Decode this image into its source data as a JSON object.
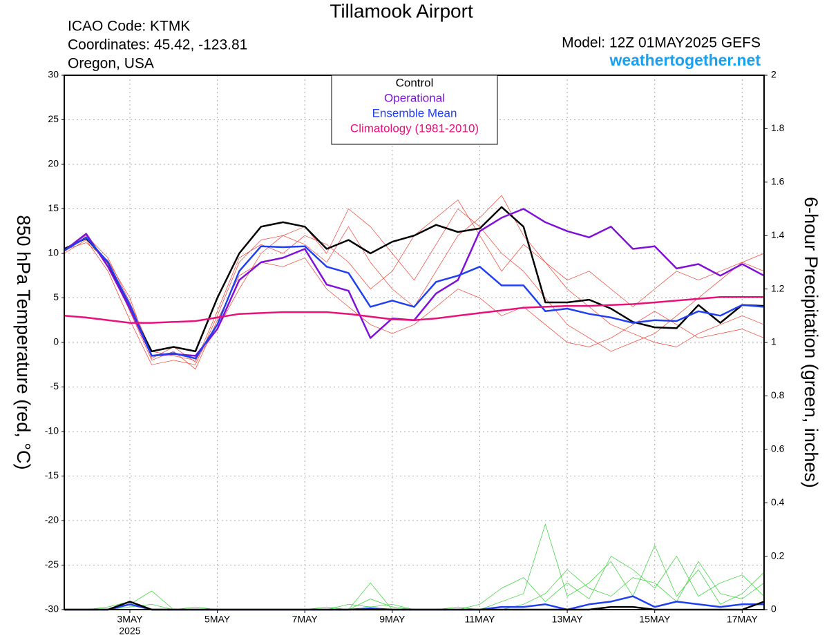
{
  "chart_data": {
    "type": "line",
    "title": "Tillamook Airport",
    "info_lines": [
      "ICAO Code: KTMK",
      "Coordinates: 45.42, -123.81",
      "Oregon, USA"
    ],
    "model": "Model: 12Z 01MAY2025 GEFS",
    "source": "weathertogether.net",
    "y_label": "850 hPa Temperature (red, °C)",
    "y2_label": "6-hour Precipitation (green, inches)",
    "categories": [
      null,
      null,
      null,
      "3MAY",
      null,
      null,
      null,
      "5MAY",
      null,
      null,
      null,
      "7MAY",
      null,
      null,
      null,
      "9MAY",
      null,
      null,
      null,
      "11MAY",
      null,
      null,
      null,
      "13MAY",
      null,
      null,
      null,
      "15MAY",
      null,
      null,
      null,
      "17MAY",
      null
    ],
    "x_sublabel": "2025",
    "ylim": [
      -30,
      30
    ],
    "yticks": [
      -30,
      -25,
      -20,
      -15,
      -10,
      -5,
      0,
      5,
      10,
      15,
      20,
      25,
      30
    ],
    "y2lim": [
      0,
      2
    ],
    "y2ticks": [
      0,
      0.2,
      0.4,
      0.6,
      0.8,
      1,
      1.2,
      1.4,
      1.6,
      1.8,
      2
    ],
    "grid": true,
    "series": [
      {
        "color": "#f04030",
        "width": 0.7,
        "values": [
          10,
          11.5,
          8,
          2.5,
          -2.5,
          -2,
          -2.5,
          3,
          9,
          11.5,
          12,
          11,
          9,
          13,
          9,
          6,
          4,
          8,
          12,
          14,
          16.5,
          12,
          9,
          6,
          4,
          2,
          1,
          0,
          -0.5,
          1,
          2,
          3,
          2
        ]
      },
      {
        "color": "#f04030",
        "width": 0.7,
        "values": [
          10.5,
          12,
          9.5,
          4.5,
          -1,
          -1.5,
          -2,
          1.5,
          6,
          10,
          12,
          13,
          10,
          15,
          13,
          10,
          7,
          11,
          15,
          13,
          10,
          8,
          5,
          2,
          0.5,
          -1,
          0,
          1,
          3,
          5,
          7,
          9,
          10
        ]
      },
      {
        "color": "#f04030",
        "width": 0.7,
        "values": [
          10.2,
          11.8,
          8.8,
          3.5,
          -2,
          -1,
          -3,
          2.5,
          7.5,
          9,
          8.5,
          9.5,
          6,
          4,
          2,
          1,
          2,
          4,
          6,
          5,
          3,
          4,
          2,
          0,
          -0.5,
          0.5,
          2,
          3.5,
          2,
          0.5,
          1,
          1.5,
          0.5
        ]
      },
      {
        "color": "#f04030",
        "width": 0.7,
        "values": [
          10.4,
          11.2,
          9.2,
          5,
          -1.8,
          -0.5,
          -2.2,
          3.5,
          9.5,
          11,
          10,
          12,
          11,
          9,
          6,
          8,
          12,
          14,
          16,
          12,
          8,
          11,
          9,
          7,
          8,
          6,
          4,
          6,
          8,
          7,
          8,
          9,
          8
        ]
      },
      {
        "color": "#30d030",
        "width": 0.7,
        "axis": "y2",
        "values": [
          0,
          0,
          0,
          0.02,
          0.07,
          0,
          0,
          0,
          0,
          0,
          0,
          0,
          0,
          0,
          0.1,
          0,
          0,
          0,
          0.01,
          0,
          0.03,
          0.06,
          0.32,
          0.05,
          0.1,
          0.18,
          0.05,
          0.24,
          0.05,
          0.15,
          0.02,
          0.06,
          0.14
        ]
      },
      {
        "color": "#30d030",
        "width": 0.7,
        "axis": "y2",
        "values": [
          0,
          0,
          0.01,
          0.03,
          0,
          0,
          0.01,
          0,
          0,
          0,
          0,
          0,
          0,
          0.02,
          0.01,
          0.02,
          0,
          0,
          0,
          0.02,
          0.08,
          0.12,
          0.03,
          0.1,
          0.04,
          0.2,
          0.15,
          0.08,
          0.2,
          0.05,
          0.1,
          0.13,
          0.05
        ]
      },
      {
        "color": "#30d030",
        "width": 0.7,
        "axis": "y2",
        "values": [
          0,
          0,
          0,
          0.01,
          0.02,
          0,
          0,
          0,
          0,
          0,
          0,
          0,
          0.01,
          0,
          0.04,
          0.01,
          0,
          0,
          0,
          0,
          0,
          0.02,
          0.06,
          0.15,
          0.08,
          0.05,
          0.12,
          0.1,
          0.03,
          0.18,
          0.06,
          0.04,
          0.1
        ]
      },
      {
        "color": "#2040f0",
        "width": 2.5,
        "axis": "y2",
        "values": [
          0,
          0,
          0,
          0.02,
          0,
          0,
          0,
          0,
          0,
          0,
          0,
          0,
          0,
          0,
          0.005,
          0,
          0,
          0,
          0,
          0,
          0.01,
          0.01,
          0.02,
          0,
          0.02,
          0.03,
          0.05,
          0.01,
          0.03,
          0.02,
          0.01,
          0.02,
          0.02
        ]
      },
      {
        "color": "#000000",
        "width": 2.5,
        "axis": "y2",
        "values": [
          0,
          0,
          0,
          0.03,
          0,
          0,
          0,
          0,
          0,
          0,
          0,
          0,
          0,
          0,
          0,
          0,
          0,
          0,
          0,
          0,
          0,
          0,
          0,
          0,
          0,
          0.01,
          0.01,
          0,
          0,
          0,
          0,
          0,
          0.03
        ]
      },
      {
        "name": "Control",
        "color": "#000000",
        "width": 2.5,
        "values": [
          10.5,
          11.7,
          9,
          3.8,
          -1,
          -0.5,
          -1,
          5,
          10,
          13,
          13.5,
          13,
          10.5,
          11.5,
          10,
          11.3,
          12,
          13.2,
          12.4,
          12.8,
          15.2,
          13,
          4.5,
          4.5,
          4.8,
          3.8,
          2.3,
          1.7,
          1.6,
          4.2,
          2.2,
          4.2,
          4.1
        ]
      },
      {
        "name": "Operational",
        "color": "#8010d8",
        "width": 2.5,
        "values": [
          10.3,
          12.2,
          8.5,
          3.8,
          -1.5,
          -1.3,
          -1.5,
          1.5,
          7,
          9,
          9.5,
          10.5,
          6.5,
          5.8,
          0.5,
          2.7,
          2.5,
          5.5,
          7,
          12.5,
          14,
          15,
          13.5,
          12.5,
          11.8,
          13,
          10.5,
          10.8,
          8.3,
          8.8,
          7.5,
          8.8,
          7.5
        ]
      },
      {
        "name": "Ensemble Mean",
        "color": "#2040f0",
        "width": 2.5,
        "values": [
          10.3,
          11.8,
          9,
          4.2,
          -1.5,
          -1.2,
          -1.8,
          2,
          8,
          10.8,
          10.7,
          10.8,
          8.5,
          7.8,
          4,
          4.7,
          4,
          6.8,
          7.5,
          8.5,
          6.4,
          6.4,
          3.5,
          3.8,
          3.2,
          2.8,
          2.2,
          2.5,
          2.4,
          3.5,
          3,
          4.2,
          4
        ]
      },
      {
        "name": "Climatology (1981-2010)",
        "color": "#e8107a",
        "width": 2.5,
        "values": [
          3,
          2.8,
          2.5,
          2.2,
          2.2,
          2.3,
          2.4,
          2.8,
          3.2,
          3.3,
          3.4,
          3.4,
          3.4,
          3.2,
          2.9,
          2.6,
          2.5,
          2.7,
          3,
          3.3,
          3.6,
          3.9,
          4,
          4.1,
          4.1,
          4.2,
          4.3,
          4.5,
          4.7,
          4.9,
          5.1,
          5.1,
          5.1
        ]
      }
    ]
  }
}
